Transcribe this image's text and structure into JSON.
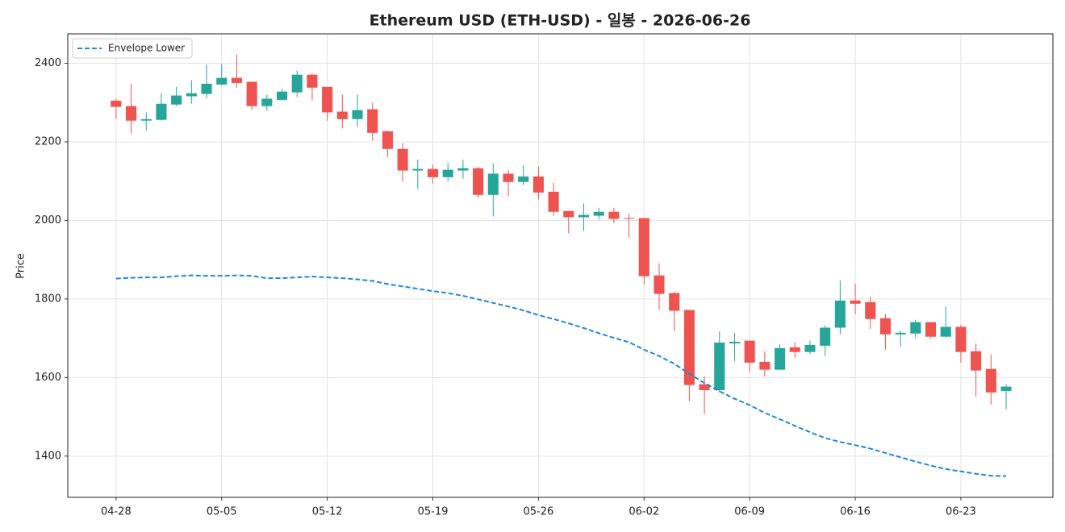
{
  "chart_data": {
    "type": "candlestick",
    "title": "Ethereum USD (ETH-USD) - 일봉 - 2026-06-26",
    "ylabel": "Price",
    "x": [
      "04-28",
      "04-29",
      "04-30",
      "05-01",
      "05-02",
      "05-03",
      "05-04",
      "05-05",
      "05-06",
      "05-07",
      "05-08",
      "05-09",
      "05-10",
      "05-11",
      "05-12",
      "05-13",
      "05-14",
      "05-15",
      "05-16",
      "05-17",
      "05-18",
      "05-19",
      "05-20",
      "05-21",
      "05-22",
      "05-23",
      "05-24",
      "05-25",
      "05-26",
      "05-27",
      "05-28",
      "05-29",
      "05-30",
      "05-31",
      "06-01",
      "06-02",
      "06-03",
      "06-04",
      "06-05",
      "06-06",
      "06-07",
      "06-08",
      "06-09",
      "06-10",
      "06-11",
      "06-12",
      "06-13",
      "06-14",
      "06-15",
      "06-16",
      "06-17",
      "06-18",
      "06-19",
      "06-20",
      "06-21",
      "06-22",
      "06-23",
      "06-24",
      "06-25",
      "06-26"
    ],
    "open": [
      2305,
      2291,
      2254,
      2256,
      2295,
      2316,
      2322,
      2346,
      2363,
      2353,
      2291,
      2307,
      2326,
      2371,
      2340,
      2277,
      2258,
      2283,
      2227,
      2182,
      2127,
      2131,
      2110,
      2127,
      2133,
      2065,
      2119,
      2098,
      2112,
      2073,
      2024,
      2008,
      2012,
      2022,
      2006,
      2006,
      1860,
      1815,
      1772,
      1583,
      1568,
      1687,
      1694,
      1640,
      1620,
      1677,
      1665,
      1681,
      1727,
      1796,
      1792,
      1751,
      1710,
      1712,
      1741,
      1704,
      1729,
      1667,
      1622,
      1566
    ],
    "high": [
      2310,
      2348,
      2275,
      2324,
      2340,
      2357,
      2398,
      2398,
      2422,
      2353,
      2320,
      2336,
      2381,
      2375,
      2340,
      2320,
      2320,
      2299,
      2229,
      2197,
      2155,
      2141,
      2147,
      2155,
      2137,
      2145,
      2129,
      2141,
      2137,
      2096,
      2024,
      2043,
      2032,
      2032,
      2018,
      2006,
      1891,
      1819,
      1772,
      1603,
      1718,
      1714,
      1694,
      1667,
      1685,
      1689,
      1694,
      1733,
      1847,
      1839,
      1806,
      1761,
      1720,
      1747,
      1741,
      1780,
      1735,
      1687,
      1659,
      1583
    ],
    "low": [
      2258,
      2221,
      2229,
      2254,
      2291,
      2297,
      2312,
      2344,
      2338,
      2281,
      2279,
      2305,
      2314,
      2305,
      2254,
      2234,
      2238,
      2203,
      2162,
      2098,
      2080,
      2094,
      2100,
      2106,
      2057,
      2010,
      2061,
      2090,
      2053,
      2012,
      1967,
      1973,
      2002,
      1993,
      1956,
      1837,
      1772,
      1718,
      1540,
      1507,
      1562,
      1642,
      1614,
      1603,
      1620,
      1650,
      1659,
      1655,
      1710,
      1761,
      1724,
      1671,
      1679,
      1700,
      1700,
      1702,
      1638,
      1552,
      1531,
      1519
    ],
    "close": [
      2289,
      2254,
      2258,
      2297,
      2318,
      2324,
      2348,
      2363,
      2350,
      2291,
      2310,
      2328,
      2371,
      2338,
      2275,
      2258,
      2281,
      2223,
      2182,
      2127,
      2131,
      2110,
      2129,
      2133,
      2065,
      2119,
      2098,
      2112,
      2071,
      2022,
      2008,
      2014,
      2022,
      2004,
      2004,
      1858,
      1813,
      1770,
      1581,
      1568,
      1689,
      1691,
      1638,
      1620,
      1675,
      1665,
      1683,
      1727,
      1796,
      1788,
      1749,
      1710,
      1714,
      1741,
      1704,
      1729,
      1665,
      1618,
      1562,
      1577
    ],
    "up_color": "#26a69a",
    "down_color": "#ef5350",
    "series": [
      {
        "name": "Envelope Lower",
        "color": "#1e88e5",
        "dashed": true,
        "values": [
          1852,
          1854,
          1855,
          1855,
          1858,
          1860,
          1859,
          1859,
          1860,
          1859,
          1853,
          1853,
          1855,
          1857,
          1855,
          1853,
          1850,
          1846,
          1838,
          1832,
          1826,
          1820,
          1815,
          1808,
          1799,
          1790,
          1781,
          1771,
          1759,
          1749,
          1738,
          1726,
          1713,
          1701,
          1690,
          1671,
          1655,
          1635,
          1610,
          1586,
          1565,
          1546,
          1530,
          1510,
          1494,
          1477,
          1461,
          1446,
          1436,
          1428,
          1419,
          1408,
          1397,
          1386,
          1376,
          1367,
          1361,
          1355,
          1350,
          1349
        ]
      }
    ],
    "xticks": [
      "04-28",
      "05-05",
      "05-12",
      "05-19",
      "05-26",
      "06-02",
      "06-09",
      "06-16",
      "06-23"
    ],
    "xlim": [
      -3.2,
      62.1
    ],
    "ylim": [
      1295,
      2475
    ],
    "yticks": [
      1400,
      1600,
      1800,
      2000,
      2200,
      2400
    ],
    "grid": true,
    "legend": "upper left"
  }
}
